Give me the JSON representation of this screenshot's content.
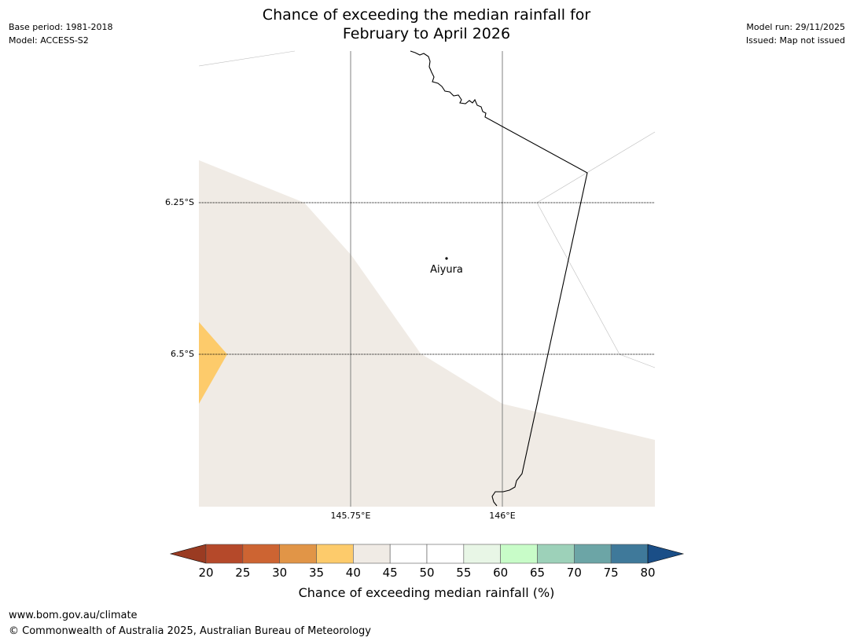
{
  "title": {
    "line1": "Chance of exceeding the median rainfall for",
    "line2": "February to April 2026"
  },
  "meta_left": {
    "base_period": "Base period: 1981-2018",
    "model": "Model: ACCESS-S2"
  },
  "meta_right": {
    "model_run": "Model run: 29/11/2025",
    "issued": "Issued: Map not issued"
  },
  "map": {
    "lat_labels": [
      "6.25°S",
      "6.5°S"
    ],
    "lon_labels": [
      "145.75°E",
      "146°E"
    ],
    "place": {
      "name": "Aiyura"
    }
  },
  "legend": {
    "title": "Chance of exceeding median rainfall (%)",
    "ticks": [
      "20",
      "25",
      "30",
      "35",
      "40",
      "45",
      "50",
      "55",
      "60",
      "65",
      "70",
      "75",
      "80"
    ],
    "colors": [
      "#b5492a",
      "#cd6432",
      "#e19547",
      "#fdcb6b",
      "#f0ebe5",
      "#ffffff",
      "#ffffff",
      "#e8f6e6",
      "#c8fcc8",
      "#9dd1b9",
      "#6ca5a6",
      "#3f799a"
    ],
    "under_color": "#9a3b22",
    "over_color": "#1a4e87"
  },
  "footer": {
    "url": "www.bom.gov.au/climate",
    "copyright": "© Commonwealth of Australia 2025, Australian Bureau of Meteorology"
  }
}
